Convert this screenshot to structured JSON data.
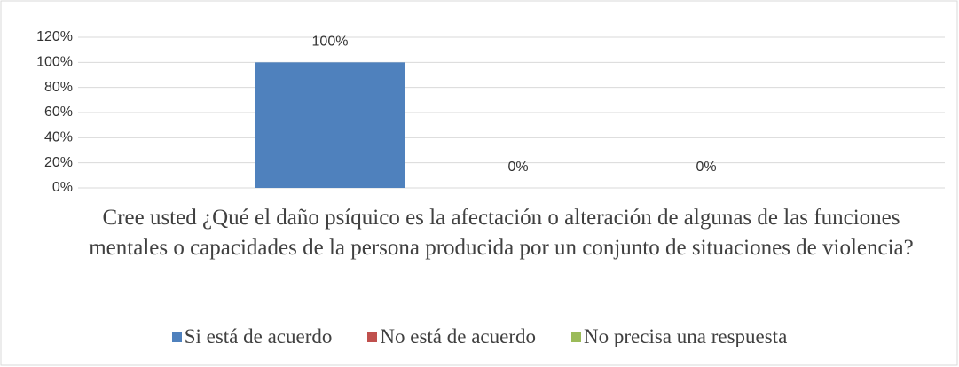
{
  "chart_data": {
    "type": "bar",
    "xlabel": "Cree usted ¿Qué el daño psíquico es la afectación o alteración de algunas de las funciones mentales o capacidades de la persona producida por un conjunto de situaciones de violencia?",
    "series": [
      {
        "name": "Si está de acuerdo",
        "color": "#4f81bd",
        "values": [
          100
        ],
        "value_labels": [
          "100%"
        ]
      },
      {
        "name": "No está de acuerdo",
        "color": "#c0504d",
        "values": [
          0
        ],
        "value_labels": [
          "0%"
        ]
      },
      {
        "name": "No precisa una respuesta",
        "color": "#9bbb59",
        "values": [
          0
        ],
        "value_labels": [
          "0%"
        ]
      }
    ],
    "ylim": [
      0,
      120
    ],
    "yticks": [
      {
        "value": 0,
        "label": "0%"
      },
      {
        "value": 20,
        "label": "20%"
      },
      {
        "value": 40,
        "label": "40%"
      },
      {
        "value": 60,
        "label": "60%"
      },
      {
        "value": 80,
        "label": "80%"
      },
      {
        "value": 100,
        "label": "100%"
      },
      {
        "value": 120,
        "label": "120%"
      }
    ],
    "grid": true,
    "legend": "bottom"
  }
}
